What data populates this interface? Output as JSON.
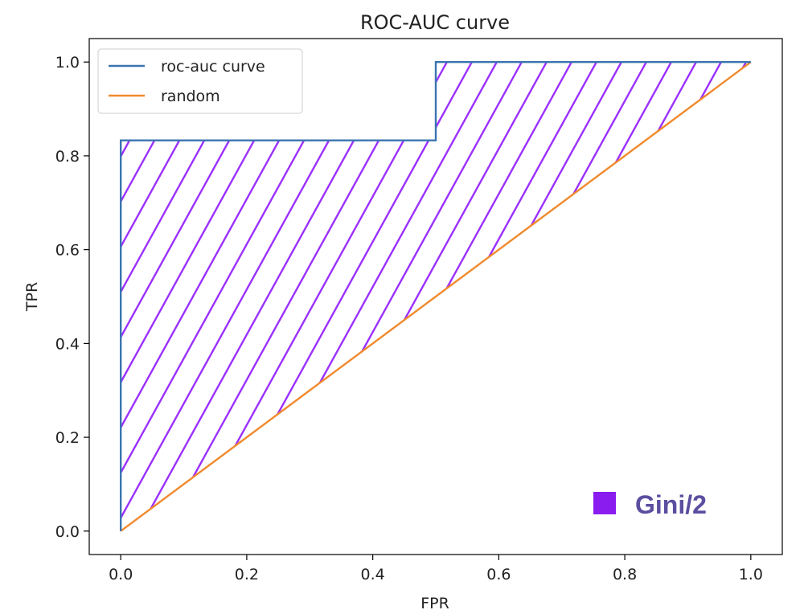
{
  "chart_data": {
    "type": "line",
    "title": "ROC-AUC curve",
    "xlabel": "FPR",
    "ylabel": "TPR",
    "xlim": [
      -0.05,
      1.05
    ],
    "ylim": [
      -0.05,
      1.05
    ],
    "xticks": [
      0.0,
      0.2,
      0.4,
      0.6,
      0.8,
      1.0
    ],
    "yticks": [
      0.0,
      0.2,
      0.4,
      0.6,
      0.8,
      1.0
    ],
    "xtick_labels": [
      "0.0",
      "0.2",
      "0.4",
      "0.6",
      "0.8",
      "1.0"
    ],
    "ytick_labels": [
      "0.0",
      "0.2",
      "0.4",
      "0.6",
      "0.8",
      "1.0"
    ],
    "grid": false,
    "legend_position": "top-left",
    "series": [
      {
        "name": "roc-auc curve",
        "color": "#3a75b0",
        "x": [
          0.0,
          0.0,
          0.5,
          0.5,
          1.0
        ],
        "y": [
          0.0,
          0.833,
          0.833,
          1.0,
          1.0
        ]
      },
      {
        "name": "random",
        "color": "#f08a2e",
        "x": [
          0.0,
          1.0
        ],
        "y": [
          0.0,
          1.0
        ]
      }
    ],
    "shaded_region": {
      "label": "Gini/2",
      "between": [
        "roc-auc curve",
        "random"
      ],
      "hatch": "diagonal",
      "color": "#9b30ff",
      "legend_color": "#8a1cf0"
    }
  }
}
